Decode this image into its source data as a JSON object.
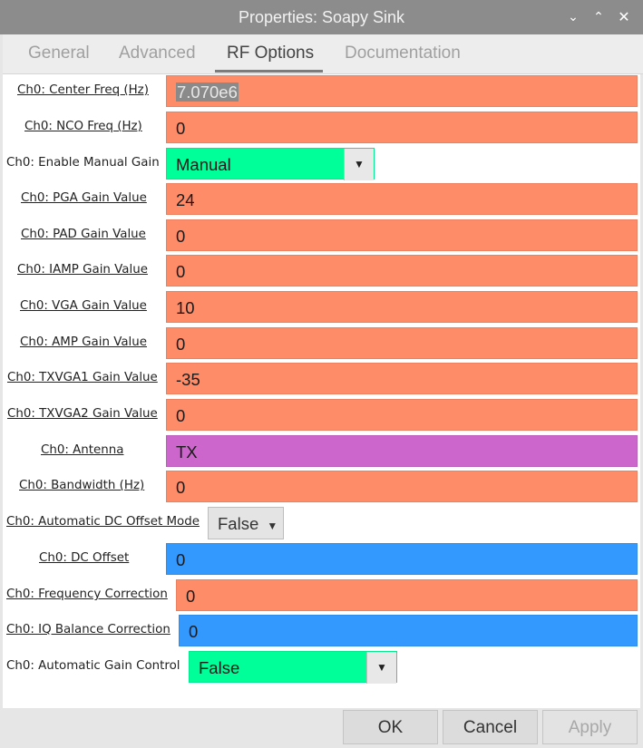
{
  "window": {
    "title": "Properties: Soapy Sink",
    "minimize_icon": "chevron-down-icon",
    "maximize_icon": "chevron-up-icon",
    "close_icon": "close-icon"
  },
  "tabs": [
    {
      "label": "General",
      "active": false
    },
    {
      "label": "Advanced",
      "active": false
    },
    {
      "label": "RF Options",
      "active": true
    },
    {
      "label": "Documentation",
      "active": false
    }
  ],
  "colors": {
    "float": "#ff8c69",
    "enum": "#00ff99",
    "string": "#cc66cc",
    "complex": "#3399ff"
  },
  "params": {
    "center_freq": {
      "label": "Ch0: Center Freq (Hz)",
      "value": "7.070e6"
    },
    "nco_freq": {
      "label": "Ch0: NCO Freq (Hz)",
      "value": "0"
    },
    "manual_gain": {
      "label": "Ch0: Enable Manual Gain",
      "value": "Manual"
    },
    "pga_gain": {
      "label": "Ch0: PGA Gain Value",
      "value": "24"
    },
    "pad_gain": {
      "label": "Ch0: PAD Gain Value",
      "value": "0"
    },
    "iamp_gain": {
      "label": "Ch0: IAMP Gain Value",
      "value": "0"
    },
    "vga_gain": {
      "label": "Ch0: VGA Gain Value",
      "value": "10"
    },
    "amp_gain": {
      "label": "Ch0: AMP Gain Value",
      "value": "0"
    },
    "txvga1_gain": {
      "label": "Ch0: TXVGA1 Gain Value",
      "value": "-35"
    },
    "txvga2_gain": {
      "label": "Ch0: TXVGA2 Gain Value",
      "value": "0"
    },
    "antenna": {
      "label": "Ch0: Antenna",
      "value": "TX"
    },
    "bandwidth": {
      "label": "Ch0: Bandwidth (Hz)",
      "value": "0"
    },
    "auto_dc_offset": {
      "label": "Ch0: Automatic DC Offset Mode",
      "value": "False"
    },
    "dc_offset": {
      "label": "Ch0: DC Offset",
      "value": "0"
    },
    "freq_correction": {
      "label": "Ch0: Frequency Correction",
      "value": "0"
    },
    "iq_balance": {
      "label": "Ch0: IQ Balance Correction",
      "value": "0"
    },
    "auto_gain": {
      "label": "Ch0: Automatic Gain Control",
      "value": "False"
    }
  },
  "buttons": {
    "ok": "OK",
    "cancel": "Cancel",
    "apply": "Apply"
  }
}
